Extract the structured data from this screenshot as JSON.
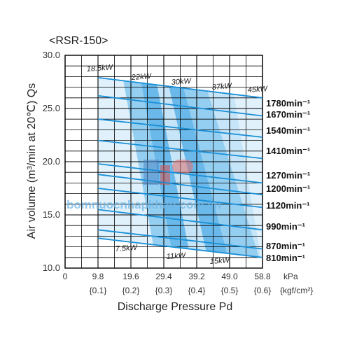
{
  "chart_data": {
    "type": "line",
    "title": "<RSR-150>",
    "xlabel": "Discharge Pressure Pd",
    "ylabel": "Air volume (m³/min at 20℃) Qs",
    "xlim": [
      0,
      58.8
    ],
    "ylim": [
      10,
      30
    ],
    "x_ticks": [
      "0",
      "9.8",
      "19.6",
      "29.4",
      "39.2",
      "49.0",
      "58.8"
    ],
    "x_unit": "kPa",
    "x_ticks_alt": [
      "{0.1}",
      "{0.2}",
      "{0.3}",
      "{0.4}",
      "{0.5}",
      "{0.6}"
    ],
    "x_unit_alt": "{kgf/cm²}",
    "y_ticks": [
      "10.0",
      "15.0",
      "20.0",
      "25.0",
      "30.0"
    ],
    "grid": true,
    "series": [
      {
        "name": "1780min⁻¹",
        "x": [
          9.8,
          58.8
        ],
        "y": [
          27.9,
          26.0
        ]
      },
      {
        "name": "1670min⁻¹",
        "x": [
          9.8,
          58.8
        ],
        "y": [
          26.2,
          24.3
        ]
      },
      {
        "name": "1540min⁻¹",
        "x": [
          9.8,
          58.8
        ],
        "y": [
          24.0,
          22.3
        ]
      },
      {
        "name": "1410min⁻¹",
        "x": [
          9.8,
          58.8
        ],
        "y": [
          22.0,
          20.3
        ]
      },
      {
        "name": "1270min⁻¹",
        "x": [
          9.8,
          58.8
        ],
        "y": [
          19.8,
          18.0
        ]
      },
      {
        "name": "1200min⁻¹",
        "x": [
          9.8,
          58.8
        ],
        "y": [
          18.8,
          16.9
        ]
      },
      {
        "name": "1120min⁻¹",
        "x": [
          9.8,
          58.8
        ],
        "y": [
          17.5,
          15.7
        ]
      },
      {
        "name": "990min⁻¹",
        "x": [
          9.8,
          58.8
        ],
        "y": [
          15.5,
          13.6
        ]
      },
      {
        "name": "870min⁻¹",
        "x": [
          9.8,
          58.8
        ],
        "y": [
          13.6,
          11.8
        ]
      },
      {
        "name": "810min⁻¹",
        "x": [
          9.8,
          58.8
        ],
        "y": [
          12.8,
          11.0
        ]
      }
    ],
    "power_bands": [
      {
        "label": "18.5kW"
      },
      {
        "label": "22kW"
      },
      {
        "label": "30kW"
      },
      {
        "label": "37kW"
      },
      {
        "label": "45kW"
      },
      {
        "label": "7.5kW"
      },
      {
        "label": "11kW"
      },
      {
        "label": "15kW"
      }
    ],
    "colors": {
      "line": "#1a8fd6",
      "band_dark": "#5db2e8",
      "band_mid": "#8ccaf0",
      "band_light": "#c3e3f7",
      "band_pale": "#e0f1fb",
      "grid": "#000000"
    }
  },
  "watermark": "bomnuocnhapkhau.com.vn"
}
